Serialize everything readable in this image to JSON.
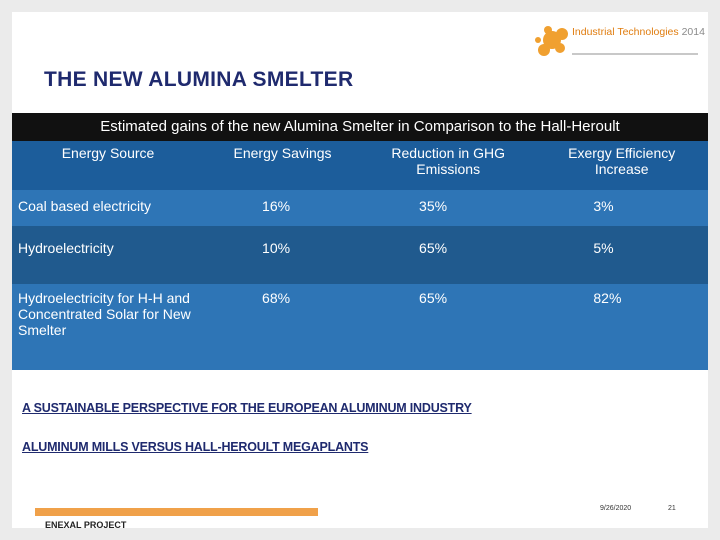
{
  "header": {
    "title": "THE NEW ALUMINA SMELTER"
  },
  "logo": {
    "name": "Industrial Technologies",
    "year": "2014"
  },
  "table": {
    "caption": "Estimated gains of the new Alumina Smelter in Comparison to the Hall-Heroult",
    "columns": [
      "Energy Source",
      "Energy Savings",
      "Reduction in GHG Emissions",
      "Exergy Efficiency Increase"
    ],
    "rows": [
      [
        "Coal based electricity",
        "16%",
        "35%",
        "3%"
      ],
      [
        "Hydroelectricity",
        "10%",
        "65%",
        "5%"
      ],
      [
        "Hydroelectricity for H-H and Concentrated Solar for New Smelter",
        "68%",
        "65%",
        "82%"
      ]
    ]
  },
  "sections": [
    "A SUSTAINABLE PERSPECTIVE FOR THE EUROPEAN ALUMINUM INDUSTRY",
    "ALUMINUM MILLS VERSUS HALL-HEROULT MEGAPLANTS"
  ],
  "footer": {
    "project": "ENEXAL PROJECT",
    "date": "9/26/2020",
    "page": "21"
  }
}
